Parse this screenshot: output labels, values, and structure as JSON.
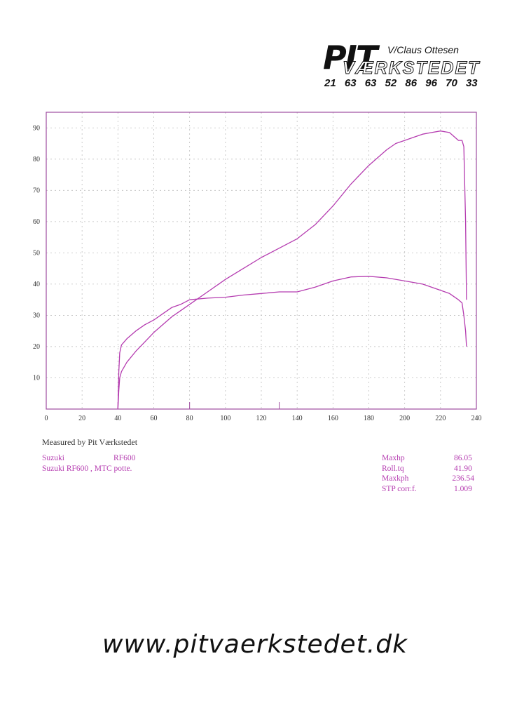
{
  "logo": {
    "brand": "PIT",
    "owner": "V/Claus Ottesen",
    "shop": "VÆRKSTEDET",
    "phones": "21 63 63 52   86 96 70 33"
  },
  "footer": {
    "measured_by": "Measured by Pit Værkstedet"
  },
  "vehicle": {
    "make": "Suzuki",
    "model": "RF600",
    "description": "Suzuki RF600 , MTC potte."
  },
  "stats": [
    {
      "label": "Maxhp",
      "value": "86.05"
    },
    {
      "label": "Roll.tq",
      "value": "41.90"
    },
    {
      "label": "Maxkph",
      "value": "236.54"
    },
    {
      "label": "STP corr.f.",
      "value": "1.009"
    }
  ],
  "website": "www.pitvaerkstedet.dk",
  "colors": {
    "curve": "#b53cb0",
    "frame": "#9e4ca0",
    "grid": "#bfbfbf",
    "text": "#333333"
  },
  "chart_data": {
    "type": "line",
    "title": "",
    "xlabel": "",
    "ylabel": "",
    "xlim": [
      0,
      240
    ],
    "ylim": [
      0,
      95
    ],
    "grid": true,
    "x_ticks": [
      "0",
      "20",
      "40",
      "60",
      "80",
      "100",
      "120",
      "140",
      "160",
      "180",
      "200",
      "220",
      "240"
    ],
    "y_ticks": [
      "10",
      "20",
      "30",
      "40",
      "50",
      "60",
      "70",
      "80",
      "90"
    ],
    "series": [
      {
        "x": [
          40,
          40.5,
          41,
          42,
          45,
          50,
          55,
          60,
          65,
          70,
          75,
          80,
          90,
          100,
          110,
          120,
          130,
          140,
          150,
          160,
          170,
          180,
          190,
          195,
          200,
          205,
          210,
          215,
          220,
          225,
          228,
          230,
          232,
          233,
          234,
          234.5
        ],
        "y": [
          0,
          6,
          10,
          12,
          15,
          18.5,
          21.5,
          24.5,
          27,
          29.5,
          31.5,
          33.5,
          37.5,
          41.5,
          45,
          48.5,
          51.5,
          54.5,
          59,
          65,
          72,
          78,
          83,
          85,
          86,
          87,
          88,
          88.5,
          89,
          88.5,
          87,
          86,
          86,
          84,
          60,
          35
        ]
      },
      {
        "x": [
          40,
          40.5,
          41,
          42,
          45,
          50,
          55,
          60,
          65,
          70,
          75,
          80,
          90,
          100,
          110,
          120,
          130,
          140,
          150,
          160,
          170,
          180,
          190,
          200,
          210,
          220,
          225,
          230,
          232,
          233,
          234,
          234.5
        ],
        "y": [
          0,
          12,
          18,
          20.5,
          22.5,
          25,
          27,
          28.5,
          30.5,
          32.5,
          33.5,
          35,
          35.5,
          35.8,
          36.5,
          37,
          37.5,
          37.5,
          39,
          41,
          42.3,
          42.5,
          42,
          41,
          40,
          38,
          37,
          35,
          34,
          30,
          25,
          20
        ]
      }
    ]
  }
}
